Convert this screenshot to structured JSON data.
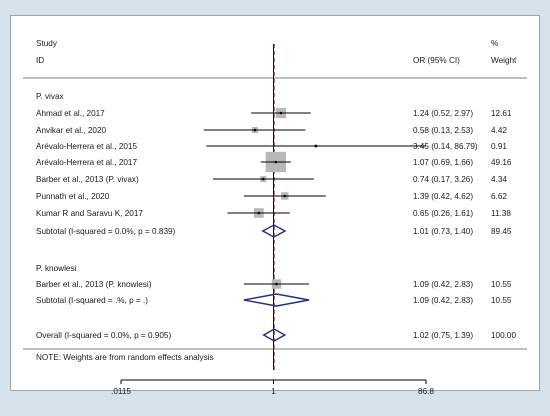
{
  "chart_data": {
    "type": "forest",
    "header": {
      "study_line1": "Study",
      "study_line2": "ID",
      "or_label": "OR (95% CI)",
      "weight_line1": "%",
      "weight_line2": "Weight"
    },
    "scale": "log",
    "null_value": 1,
    "overall_or": 1.02,
    "x_ticks": [
      {
        "value": 0.0115,
        "label": ".0115"
      },
      {
        "value": 1,
        "label": "1"
      },
      {
        "value": 86.8,
        "label": "86.8"
      }
    ],
    "xlim": [
      0.0115,
      86.8
    ],
    "colors": {
      "box": "#b8b8b8",
      "diamond": "#1f2f8a",
      "dash": "#a0303a",
      "line": "#000000"
    },
    "groups": [
      {
        "name": "P. vivax",
        "studies": [
          {
            "id": "Ahmad et al., 2017",
            "or": 1.24,
            "lo": 0.52,
            "hi": 2.97,
            "ci_text": "1.24 (0.52, 2.97)",
            "weight": 12.61,
            "weight_text": "12.61"
          },
          {
            "id": "Anvikar et al., 2020",
            "or": 0.58,
            "lo": 0.13,
            "hi": 2.53,
            "ci_text": "0.58 (0.13, 2.53)",
            "weight": 4.42,
            "weight_text": "4.42"
          },
          {
            "id": "Arévalo-Herrera et al., 2015",
            "or": 3.45,
            "lo": 0.14,
            "hi": 86.79,
            "ci_text": "3.45 (0.14, 86.79)",
            "weight": 0.91,
            "weight_text": "0.91"
          },
          {
            "id": "Arévalo-Herrera et al., 2017",
            "or": 1.07,
            "lo": 0.69,
            "hi": 1.66,
            "ci_text": "1.07 (0.69, 1.66)",
            "weight": 49.16,
            "weight_text": "49.16"
          },
          {
            "id": "Barber et al., 2013 (P. vivax)",
            "or": 0.74,
            "lo": 0.17,
            "hi": 3.26,
            "ci_text": "0.74 (0.17, 3.26)",
            "weight": 4.34,
            "weight_text": "4.34"
          },
          {
            "id": "Punnath et al., 2020",
            "or": 1.39,
            "lo": 0.42,
            "hi": 4.62,
            "ci_text": "1.39 (0.42, 4.62)",
            "weight": 6.62,
            "weight_text": "6.62"
          },
          {
            "id": "Kumar R and Saravu K, 2017",
            "or": 0.65,
            "lo": 0.26,
            "hi": 1.61,
            "ci_text": "0.65 (0.26, 1.61)",
            "weight": 11.38,
            "weight_text": "11.38"
          }
        ],
        "subtotal": {
          "label": "Subtotal  (I-squared = 0.0%, p = 0.839)",
          "or": 1.01,
          "lo": 0.73,
          "hi": 1.4,
          "ci_text": "1.01 (0.73, 1.40)",
          "weight_text": "89.45"
        }
      },
      {
        "name": "P. knowlesi",
        "studies": [
          {
            "id": "Barber et al., 2013 (P. knowlesi)",
            "or": 1.09,
            "lo": 0.42,
            "hi": 2.83,
            "ci_text": "1.09 (0.42, 2.83)",
            "weight": 10.55,
            "weight_text": "10.55"
          }
        ],
        "subtotal": {
          "label": "Subtotal  (I-squared = .%, p = .)",
          "or": 1.09,
          "lo": 0.42,
          "hi": 2.83,
          "ci_text": "1.09 (0.42, 2.83)",
          "weight_text": "10.55"
        }
      }
    ],
    "overall": {
      "label": "Overall  (I-squared = 0.0%, p = 0.905)",
      "or": 1.02,
      "lo": 0.75,
      "hi": 1.39,
      "ci_text": "1.02 (0.75, 1.39)",
      "weight_text": "100.00"
    },
    "note": "NOTE: Weights are from random effects analysis"
  }
}
